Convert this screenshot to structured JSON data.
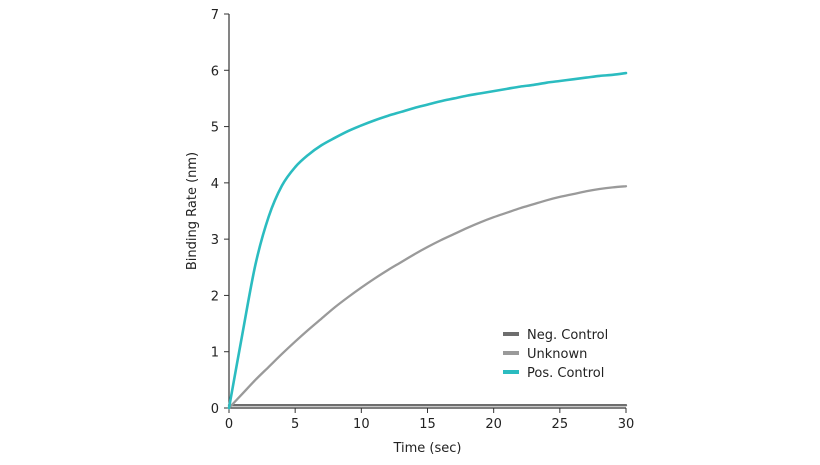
{
  "chart_data": {
    "type": "line",
    "xlabel": "Time (sec)",
    "ylabel": "Binding Rate (nm)",
    "xlim": [
      0,
      30
    ],
    "ylim": [
      0,
      7
    ],
    "xticks": [
      "0",
      "5",
      "10",
      "15",
      "20",
      "25",
      "30"
    ],
    "yticks": [
      "0",
      "1",
      "2",
      "3",
      "4",
      "5",
      "6",
      "7"
    ],
    "grid": false,
    "legend_position": "lower-right",
    "x": [
      0,
      1,
      2,
      3,
      4,
      5,
      6,
      7,
      8,
      9,
      10,
      11,
      12,
      13,
      14,
      15,
      16,
      17,
      18,
      19,
      20,
      21,
      22,
      23,
      24,
      25,
      26,
      27,
      28,
      29,
      30
    ],
    "series": [
      {
        "name": "Neg. Control",
        "color": "#6e6e6e",
        "values": [
          0.05,
          0.05,
          0.05,
          0.05,
          0.05,
          0.05,
          0.05,
          0.05,
          0.05,
          0.05,
          0.05,
          0.05,
          0.05,
          0.05,
          0.05,
          0.05,
          0.05,
          0.05,
          0.05,
          0.05,
          0.05,
          0.05,
          0.05,
          0.05,
          0.05,
          0.05,
          0.05,
          0.05,
          0.05,
          0.05,
          0.05
        ]
      },
      {
        "name": "Unknown",
        "color": "#9a9a9a",
        "values": [
          0.0,
          0.25,
          0.5,
          0.73,
          0.96,
          1.18,
          1.39,
          1.59,
          1.79,
          1.97,
          2.14,
          2.3,
          2.45,
          2.59,
          2.73,
          2.86,
          2.98,
          3.09,
          3.2,
          3.3,
          3.39,
          3.47,
          3.55,
          3.62,
          3.69,
          3.75,
          3.8,
          3.85,
          3.89,
          3.92,
          3.94
        ]
      },
      {
        "name": "Pos. Control",
        "color": "#2bbcc0",
        "values": [
          0.0,
          1.3,
          2.55,
          3.4,
          3.95,
          4.28,
          4.5,
          4.67,
          4.8,
          4.92,
          5.02,
          5.11,
          5.19,
          5.26,
          5.33,
          5.39,
          5.45,
          5.5,
          5.55,
          5.59,
          5.63,
          5.67,
          5.71,
          5.74,
          5.78,
          5.81,
          5.84,
          5.87,
          5.9,
          5.92,
          5.95
        ]
      }
    ]
  }
}
